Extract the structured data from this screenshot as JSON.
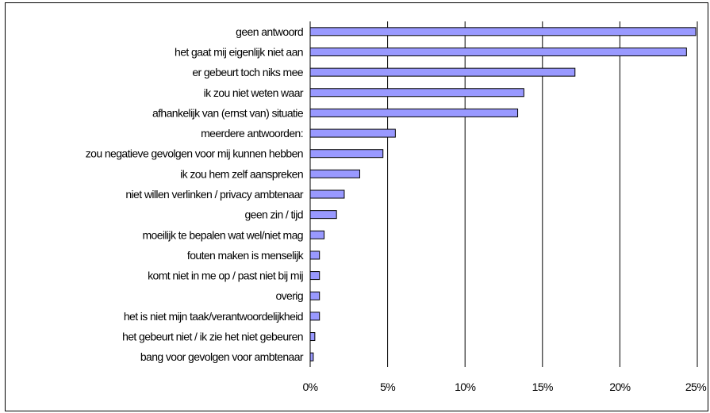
{
  "chart_data": {
    "type": "bar",
    "orientation": "horizontal",
    "title": "",
    "xlabel": "",
    "ylabel": "",
    "categories": [
      "geen antwoord",
      "het gaat mij eigenlijk niet aan",
      "er gebeurt toch niks mee",
      "ik zou niet weten waar",
      "afhankelijk van (ernst van) situatie",
      "meerdere antwoorden:",
      "zou negatieve gevolgen voor mij kunnen hebben",
      "ik zou hem zelf aanspreken",
      "niet willen verlinken / privacy ambtenaar",
      "geen zin / tijd",
      "moeilijk te bepalen wat wel/niet mag",
      "fouten maken is menselijk",
      "komt niet in me op / past niet bij mij",
      "overig",
      "het is niet mijn taak/verantwoordelijkheid",
      "het gebeurt niet / ik zie het niet gebeuren",
      "bang voor gevolgen voor ambtenaar"
    ],
    "values": [
      24.9,
      24.3,
      17.1,
      13.8,
      13.4,
      5.5,
      4.7,
      3.2,
      2.2,
      1.7,
      0.9,
      0.6,
      0.6,
      0.6,
      0.6,
      0.3,
      0.2
    ],
    "xlim": [
      0,
      25
    ],
    "xticks": [
      "0%",
      "5%",
      "10%",
      "15%",
      "20%",
      "25%"
    ],
    "grid": "vertical",
    "legend": "none",
    "colors": {
      "bar_fill": "#9999ff",
      "bar_stroke": "#000000",
      "grid": "#000000"
    }
  }
}
